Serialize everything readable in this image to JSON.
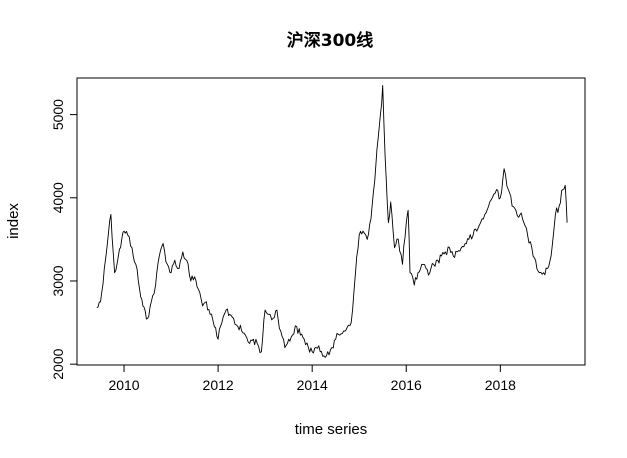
{
  "chart_data": {
    "type": "line",
    "title": "沪深300线",
    "xlabel": "time series",
    "ylabel": "index",
    "xlim": [
      2009.0,
      2019.8
    ],
    "ylim": [
      1990,
      5440
    ],
    "x_ticks": [
      2010,
      2012,
      2014,
      2016,
      2018
    ],
    "y_ticks": [
      2000,
      3000,
      4000,
      5000
    ],
    "grid": false,
    "line_color": "#000000",
    "series": [
      {
        "x": [
          2009.42,
          2009.5,
          2009.58,
          2009.67,
          2009.72,
          2009.8,
          2009.88,
          2009.95,
          2010.0,
          2010.08,
          2010.17,
          2010.25,
          2010.33,
          2010.4,
          2010.5,
          2010.58,
          2010.67,
          2010.75,
          2010.83,
          2010.92,
          2011.0,
          2011.08,
          2011.17,
          2011.25,
          2011.33,
          2011.42,
          2011.5,
          2011.58,
          2011.67,
          2011.75,
          2011.83,
          2011.92,
          2012.0,
          2012.08,
          2012.17,
          2012.25,
          2012.33,
          2012.42,
          2012.5,
          2012.58,
          2012.67,
          2012.75,
          2012.83,
          2012.92,
          2013.0,
          2013.08,
          2013.17,
          2013.25,
          2013.33,
          2013.42,
          2013.5,
          2013.58,
          2013.67,
          2013.75,
          2013.83,
          2013.92,
          2014.0,
          2014.08,
          2014.17,
          2014.25,
          2014.33,
          2014.42,
          2014.5,
          2014.58,
          2014.67,
          2014.75,
          2014.83,
          2014.92,
          2015.0,
          2015.08,
          2015.17,
          2015.25,
          2015.33,
          2015.4,
          2015.45,
          2015.5,
          2015.55,
          2015.62,
          2015.67,
          2015.75,
          2015.83,
          2015.92,
          2016.0,
          2016.04,
          2016.08,
          2016.17,
          2016.25,
          2016.33,
          2016.42,
          2016.5,
          2016.58,
          2016.67,
          2016.75,
          2016.83,
          2016.92,
          2017.0,
          2017.08,
          2017.17,
          2017.25,
          2017.33,
          2017.42,
          2017.5,
          2017.58,
          2017.67,
          2017.75,
          2017.83,
          2017.92,
          2018.0,
          2018.08,
          2018.17,
          2018.25,
          2018.33,
          2018.42,
          2018.5,
          2018.58,
          2018.67,
          2018.75,
          2018.83,
          2018.92,
          2019.0,
          2019.08,
          2019.17,
          2019.25,
          2019.33,
          2019.38,
          2019.42
        ],
        "y": [
          2680,
          2750,
          3150,
          3580,
          3800,
          3100,
          3300,
          3500,
          3600,
          3550,
          3400,
          3200,
          2900,
          2700,
          2550,
          2750,
          2950,
          3300,
          3450,
          3200,
          3100,
          3250,
          3150,
          3350,
          3250,
          3000,
          3050,
          2900,
          2700,
          2750,
          2600,
          2450,
          2300,
          2500,
          2650,
          2600,
          2550,
          2450,
          2400,
          2350,
          2250,
          2300,
          2250,
          2150,
          2650,
          2600,
          2550,
          2650,
          2400,
          2200,
          2300,
          2350,
          2450,
          2350,
          2300,
          2200,
          2150,
          2200,
          2150,
          2100,
          2150,
          2200,
          2300,
          2350,
          2400,
          2450,
          2500,
          3100,
          3550,
          3600,
          3500,
          3750,
          4200,
          4700,
          5000,
          5350,
          4500,
          3700,
          3950,
          3400,
          3500,
          3200,
          3700,
          3850,
          3100,
          2950,
          3100,
          3200,
          3150,
          3100,
          3200,
          3250,
          3300,
          3350,
          3400,
          3300,
          3350,
          3400,
          3450,
          3500,
          3550,
          3600,
          3700,
          3800,
          3900,
          4000,
          4100,
          4000,
          4350,
          4100,
          3900,
          3850,
          3800,
          3700,
          3550,
          3400,
          3250,
          3100,
          3100,
          3150,
          3300,
          3800,
          3900,
          4100,
          4150,
          3700
        ]
      }
    ]
  }
}
